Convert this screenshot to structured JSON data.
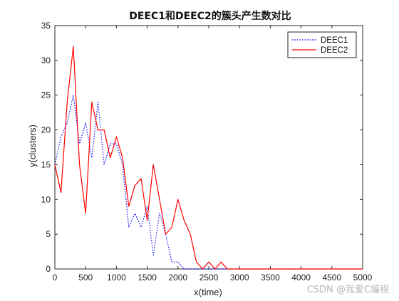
{
  "chart_data": {
    "type": "line",
    "title": "DEEC1和DEEC2的簇头产生数对比",
    "xlabel": "x(time)",
    "ylabel": "y(clusters)",
    "xlim": [
      0,
      5000
    ],
    "ylim": [
      0,
      35
    ],
    "xticks": [
      0,
      500,
      1000,
      1500,
      2000,
      2500,
      3000,
      3500,
      4000,
      4500,
      5000
    ],
    "yticks": [
      0,
      5,
      10,
      15,
      20,
      25,
      30,
      35
    ],
    "grid": false,
    "legend_position": "top-right",
    "series": [
      {
        "name": "DEEC1",
        "color": "#0000ff",
        "style": "dotted",
        "x": [
          0,
          100,
          200,
          300,
          400,
          500,
          600,
          700,
          800,
          900,
          1000,
          1100,
          1200,
          1300,
          1400,
          1500,
          1600,
          1700,
          1800,
          1900,
          2000,
          2100,
          2200,
          2300,
          2400,
          2500,
          2600,
          2700,
          2800,
          3000,
          3500,
          4000,
          4500,
          5000
        ],
        "y": [
          15,
          19,
          21,
          25,
          18,
          21,
          16,
          24,
          15,
          18,
          18,
          15,
          6,
          8,
          6,
          9,
          2,
          8,
          5,
          1,
          1,
          0,
          0,
          0,
          0,
          0,
          0,
          0,
          0,
          0,
          0,
          0,
          0,
          0
        ]
      },
      {
        "name": "DEEC2",
        "color": "#ff0000",
        "style": "solid",
        "x": [
          0,
          100,
          200,
          300,
          400,
          500,
          600,
          700,
          800,
          900,
          1000,
          1100,
          1200,
          1300,
          1400,
          1500,
          1600,
          1700,
          1800,
          1900,
          2000,
          2100,
          2200,
          2300,
          2400,
          2500,
          2600,
          2700,
          2800,
          3000,
          3500,
          4000,
          4500,
          5000
        ],
        "y": [
          15,
          11,
          24,
          32,
          15,
          8,
          24,
          20,
          20,
          16,
          19,
          16,
          9,
          12,
          13,
          7,
          15,
          10,
          5,
          6,
          10,
          7,
          5,
          1,
          0,
          1,
          0,
          1,
          0,
          0,
          0,
          0,
          0,
          0
        ]
      }
    ]
  },
  "watermark": "CSDN @我爱C编程"
}
